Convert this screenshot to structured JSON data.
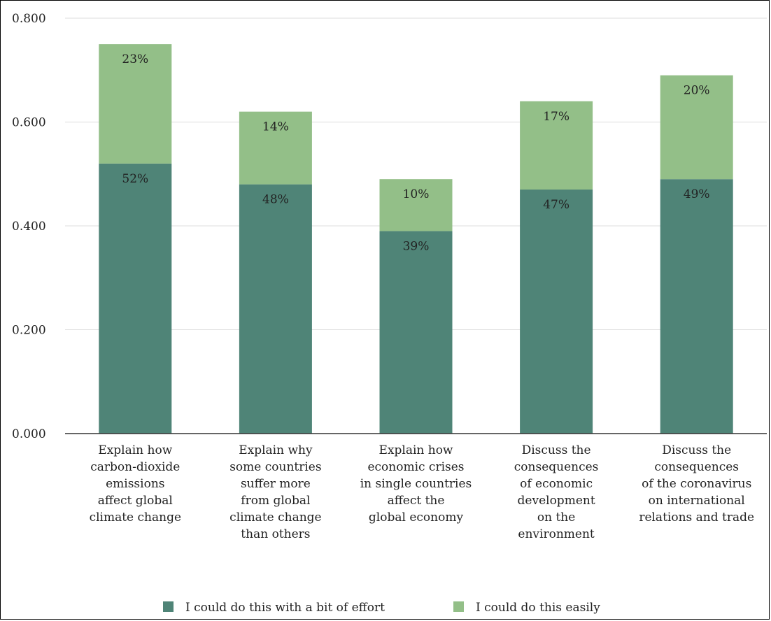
{
  "chart_data": {
    "type": "bar",
    "stacked": true,
    "categories": [
      [
        "Explain how",
        "carbon-dioxide",
        "emissions",
        "affect global",
        "climate change"
      ],
      [
        "Explain why",
        "some countries",
        "suffer more",
        "from global",
        "climate change",
        "than others"
      ],
      [
        "Explain how",
        "economic crises",
        "in single countries",
        "affect the",
        "global economy"
      ],
      [
        "Discuss the",
        "consequences",
        "of economic",
        "development",
        "on the",
        "environment"
      ],
      [
        "Discuss the",
        "consequences",
        "of the coronavirus",
        "on international",
        "relations and trade"
      ]
    ],
    "series": [
      {
        "name": "I could do this with a bit of effort",
        "values": [
          0.52,
          0.48,
          0.39,
          0.47,
          0.49
        ],
        "labels": [
          "52%",
          "48%",
          "39%",
          "47%",
          "49%"
        ],
        "color": "#4f8477"
      },
      {
        "name": "I could do this easily",
        "values": [
          0.23,
          0.14,
          0.1,
          0.17,
          0.2
        ],
        "labels": [
          "23%",
          "14%",
          "10%",
          "17%",
          "20%"
        ],
        "color": "#93bf88"
      }
    ],
    "yticks": [
      "0.000",
      "0.200",
      "0.400",
      "0.600",
      "0.800"
    ],
    "ylim": [
      0,
      0.8
    ],
    "grid": true,
    "legend_position": "bottom"
  }
}
